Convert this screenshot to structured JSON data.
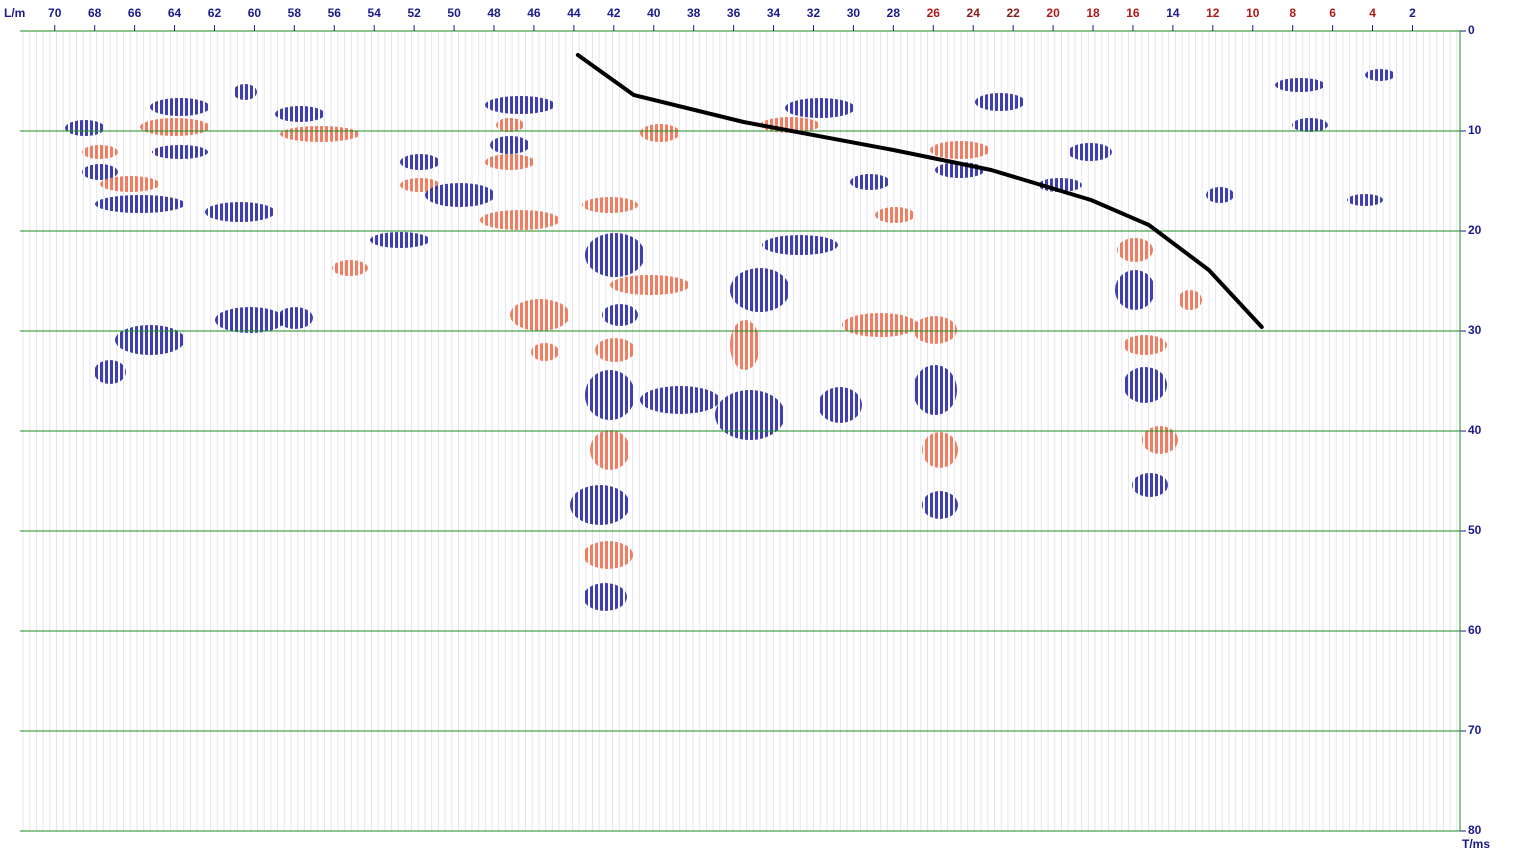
{
  "chart_data": {
    "type": "line",
    "xlabel": "L/m",
    "ylabel": "T/ms",
    "xlim": [
      71.74,
      -0.38
    ],
    "xticks": [
      70,
      68,
      66,
      64,
      62,
      60,
      58,
      56,
      54,
      52,
      50,
      48,
      46,
      44,
      42,
      40,
      38,
      36,
      34,
      32,
      30,
      28,
      26,
      24,
      22,
      20,
      18,
      16,
      14,
      12,
      10,
      8,
      6,
      4,
      2
    ],
    "xtick_colors": [
      "#1a1a8c",
      "#1a1a8c",
      "#1a1a8c",
      "#1a1a8c",
      "#1a1a8c",
      "#1a1a8c",
      "#1a1a8c",
      "#1a1a8c",
      "#1a1a8c",
      "#1a1a8c",
      "#1a1a8c",
      "#1a1a8c",
      "#1a1a8c",
      "#1a1a8c",
      "#1a1a8c",
      "#1a1a8c",
      "#1a1a8c",
      "#1a1a8c",
      "#1a1a8c",
      "#1a1a8c",
      "#1a1a8c",
      "#1a1a8c",
      "#b01818",
      "#8c1a1a",
      "#8c1a1a",
      "#b01818",
      "#b01818",
      "#b01818",
      "#1a1a8c",
      "#b01818",
      "#b01818",
      "#b01818",
      "#b01818",
      "#b01818",
      "#1a1a8c"
    ],
    "ylim": [
      0,
      80
    ],
    "yticks": [
      0,
      10,
      20,
      30,
      40,
      50,
      60,
      70,
      80
    ],
    "grid": true,
    "grid_color": "#1a8c1a",
    "x": [
      43.8,
      41.0,
      35.5,
      28.0,
      23.1,
      18.1,
      15.2,
      12.2,
      9.55
    ],
    "series": [
      {
        "color": "#000000",
        "values": [
          2.4,
          6.4,
          9.1,
          11.9,
          13.9,
          16.9,
          19.4,
          23.9,
          29.6
        ]
      }
    ]
  }
}
